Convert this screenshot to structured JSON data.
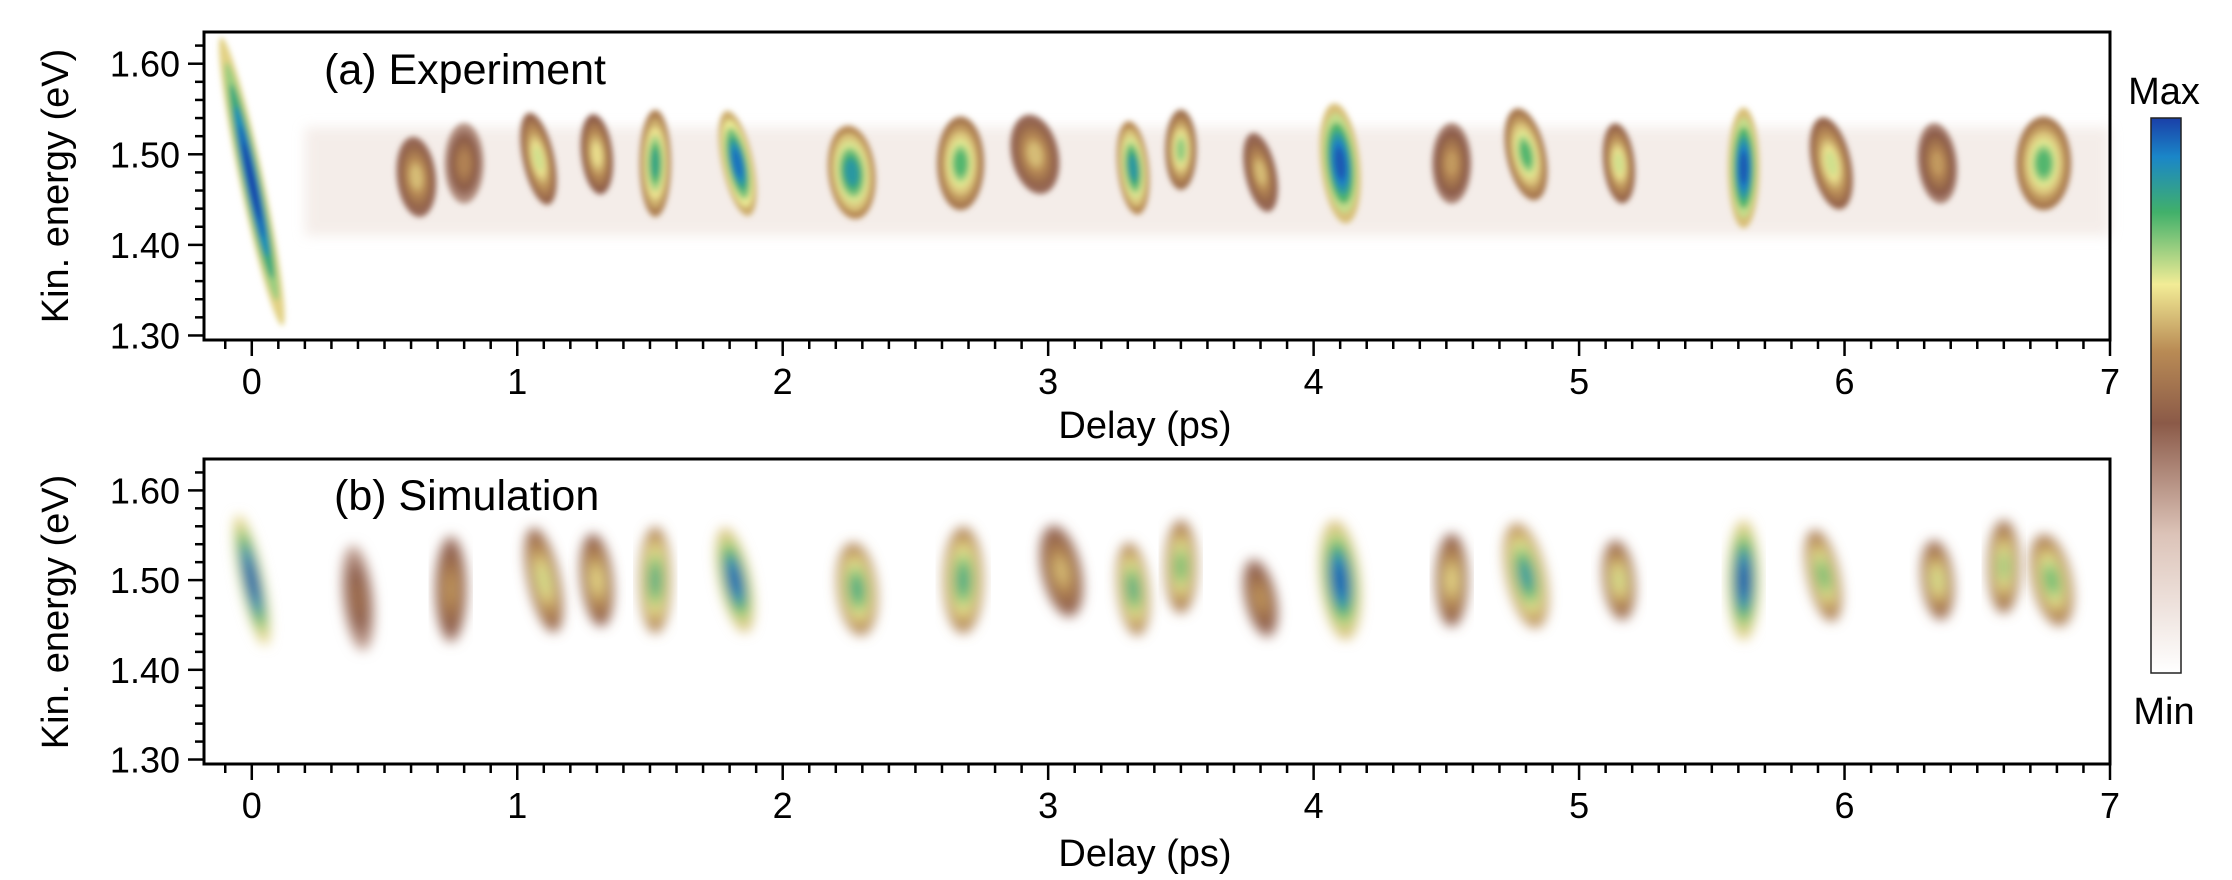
{
  "colorscale": {
    "max_label": "Max",
    "min_label": "Min",
    "stops": [
      "#ffffff",
      "#dcc3b8",
      "#8b5a48",
      "#b98b55",
      "#f2ec96",
      "#41b06a",
      "#1a86c8",
      "#1a3fa8"
    ]
  },
  "chart_data": [
    {
      "type": "heatmap",
      "panel_label": "(a) Experiment",
      "xlabel": "Delay (ps)",
      "ylabel": "Kin. energy (eV)",
      "xlim": [
        -0.18,
        7.0
      ],
      "ylim": [
        1.295,
        1.635
      ],
      "xticks": [
        0,
        1,
        2,
        3,
        4,
        5,
        6,
        7
      ],
      "yticks": [
        "1.30",
        "1.40",
        "1.50",
        "1.60"
      ],
      "blobs": [
        {
          "x": 0.0,
          "y": 1.47,
          "dx": 0.03,
          "dy": 0.11,
          "i": 1.0
        },
        {
          "x": 0.62,
          "y": 1.475,
          "dx": 0.05,
          "dy": 0.03,
          "i": 0.5
        },
        {
          "x": 0.8,
          "y": 1.49,
          "dx": 0.05,
          "dy": 0.03,
          "i": 0.4
        },
        {
          "x": 1.08,
          "y": 1.495,
          "dx": 0.04,
          "dy": 0.035,
          "i": 0.6
        },
        {
          "x": 1.3,
          "y": 1.5,
          "dx": 0.04,
          "dy": 0.03,
          "i": 0.55
        },
        {
          "x": 1.52,
          "y": 1.49,
          "dx": 0.04,
          "dy": 0.04,
          "i": 0.75
        },
        {
          "x": 1.83,
          "y": 1.49,
          "dx": 0.04,
          "dy": 0.04,
          "i": 0.9
        },
        {
          "x": 2.26,
          "y": 1.48,
          "dx": 0.06,
          "dy": 0.035,
          "i": 0.8
        },
        {
          "x": 2.67,
          "y": 1.49,
          "dx": 0.06,
          "dy": 0.035,
          "i": 0.7
        },
        {
          "x": 2.95,
          "y": 1.5,
          "dx": 0.06,
          "dy": 0.03,
          "i": 0.5
        },
        {
          "x": 3.32,
          "y": 1.485,
          "dx": 0.04,
          "dy": 0.035,
          "i": 0.8
        },
        {
          "x": 3.5,
          "y": 1.505,
          "dx": 0.04,
          "dy": 0.03,
          "i": 0.65
        },
        {
          "x": 3.8,
          "y": 1.48,
          "dx": 0.04,
          "dy": 0.03,
          "i": 0.5
        },
        {
          "x": 4.1,
          "y": 1.49,
          "dx": 0.05,
          "dy": 0.045,
          "i": 0.95
        },
        {
          "x": 4.52,
          "y": 1.49,
          "dx": 0.05,
          "dy": 0.03,
          "i": 0.45
        },
        {
          "x": 4.8,
          "y": 1.5,
          "dx": 0.05,
          "dy": 0.035,
          "i": 0.7
        },
        {
          "x": 5.15,
          "y": 1.49,
          "dx": 0.04,
          "dy": 0.03,
          "i": 0.6
        },
        {
          "x": 5.62,
          "y": 1.485,
          "dx": 0.04,
          "dy": 0.045,
          "i": 0.95
        },
        {
          "x": 5.95,
          "y": 1.49,
          "dx": 0.05,
          "dy": 0.035,
          "i": 0.6
        },
        {
          "x": 6.35,
          "y": 1.49,
          "dx": 0.05,
          "dy": 0.03,
          "i": 0.45
        },
        {
          "x": 6.75,
          "y": 1.49,
          "dx": 0.07,
          "dy": 0.035,
          "i": 0.7
        }
      ]
    },
    {
      "type": "heatmap",
      "panel_label": "(b) Simulation",
      "xlabel": "Delay (ps)",
      "ylabel": "Kin. energy (eV)",
      "xlim": [
        -0.18,
        7.0
      ],
      "ylim": [
        1.295,
        1.635
      ],
      "xticks": [
        0,
        1,
        2,
        3,
        4,
        5,
        6,
        7
      ],
      "yticks": [
        "1.30",
        "1.40",
        "1.50",
        "1.60"
      ],
      "blobs": [
        {
          "x": 0.0,
          "y": 1.5,
          "dx": 0.03,
          "dy": 0.05,
          "i": 1.0
        },
        {
          "x": 0.4,
          "y": 1.48,
          "dx": 0.04,
          "dy": 0.04,
          "i": 0.35
        },
        {
          "x": 0.75,
          "y": 1.49,
          "dx": 0.04,
          "dy": 0.04,
          "i": 0.45
        },
        {
          "x": 1.1,
          "y": 1.5,
          "dx": 0.04,
          "dy": 0.04,
          "i": 0.6
        },
        {
          "x": 1.3,
          "y": 1.5,
          "dx": 0.04,
          "dy": 0.035,
          "i": 0.55
        },
        {
          "x": 1.52,
          "y": 1.5,
          "dx": 0.04,
          "dy": 0.04,
          "i": 0.75
        },
        {
          "x": 1.82,
          "y": 1.5,
          "dx": 0.04,
          "dy": 0.04,
          "i": 0.95
        },
        {
          "x": 2.28,
          "y": 1.49,
          "dx": 0.05,
          "dy": 0.035,
          "i": 0.75
        },
        {
          "x": 2.68,
          "y": 1.5,
          "dx": 0.05,
          "dy": 0.04,
          "i": 0.75
        },
        {
          "x": 3.05,
          "y": 1.51,
          "dx": 0.05,
          "dy": 0.035,
          "i": 0.5
        },
        {
          "x": 3.32,
          "y": 1.49,
          "dx": 0.04,
          "dy": 0.035,
          "i": 0.75
        },
        {
          "x": 3.5,
          "y": 1.515,
          "dx": 0.04,
          "dy": 0.035,
          "i": 0.7
        },
        {
          "x": 3.8,
          "y": 1.48,
          "dx": 0.04,
          "dy": 0.03,
          "i": 0.45
        },
        {
          "x": 4.1,
          "y": 1.5,
          "dx": 0.05,
          "dy": 0.045,
          "i": 0.95
        },
        {
          "x": 4.52,
          "y": 1.5,
          "dx": 0.04,
          "dy": 0.035,
          "i": 0.55
        },
        {
          "x": 4.8,
          "y": 1.505,
          "dx": 0.05,
          "dy": 0.04,
          "i": 0.8
        },
        {
          "x": 5.15,
          "y": 1.5,
          "dx": 0.04,
          "dy": 0.03,
          "i": 0.6
        },
        {
          "x": 5.62,
          "y": 1.5,
          "dx": 0.04,
          "dy": 0.045,
          "i": 0.98
        },
        {
          "x": 5.92,
          "y": 1.505,
          "dx": 0.04,
          "dy": 0.035,
          "i": 0.7
        },
        {
          "x": 6.35,
          "y": 1.5,
          "dx": 0.04,
          "dy": 0.03,
          "i": 0.6
        },
        {
          "x": 6.6,
          "y": 1.515,
          "dx": 0.04,
          "dy": 0.035,
          "i": 0.65
        },
        {
          "x": 6.78,
          "y": 1.5,
          "dx": 0.05,
          "dy": 0.035,
          "i": 0.7
        }
      ]
    }
  ]
}
